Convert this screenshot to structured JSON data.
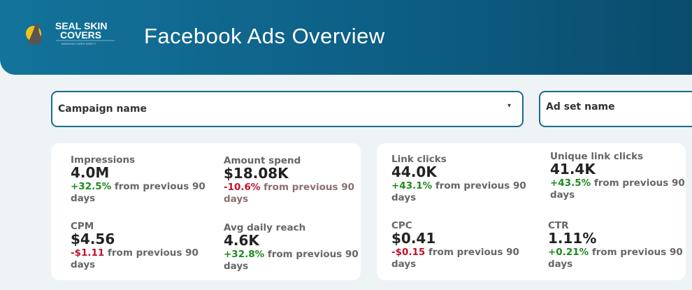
{
  "header": {
    "title": "Facebook Ads Overview",
    "logo": {
      "line1": "SEAL SKIN",
      "line2": "COVERS",
      "tagline": "MANUFACTURED DIRECT"
    }
  },
  "filters": {
    "campaign": "Campaign name",
    "adset": "Ad set name"
  },
  "colors": {
    "positive": "#1e8a1e",
    "negative": "#c0122a",
    "header": "#0d5d83"
  },
  "cards": [
    {
      "metrics": [
        {
          "label": "Impressions",
          "value": "4.0M",
          "change": "+32.5%",
          "dir": "pos",
          "suffix": "from previous 90 days"
        },
        {
          "label": "Amount spend",
          "value": "$18.08K",
          "change": "-10.6%",
          "dir": "neg",
          "suffix": "from previous 90 days"
        },
        {
          "label": "CPM",
          "value": "$4.56",
          "change": "-$1.11",
          "dir": "neg",
          "suffix": "from previous 90 days"
        },
        {
          "label": "Avg daily reach",
          "value": "4.6K",
          "change": "+32.8%",
          "dir": "pos",
          "suffix": "from previous 90 days"
        }
      ]
    },
    {
      "metrics": [
        {
          "label": "Link clicks",
          "value": "44.0K",
          "change": "+43.1%",
          "dir": "pos",
          "suffix": "from previous 90 days"
        },
        {
          "label": "Unique link clicks",
          "value": "41.4K",
          "change": "+43.5%",
          "dir": "pos",
          "suffix": "from previous 90 days"
        },
        {
          "label": "CPC",
          "value": "$0.41",
          "change": "-$0.15",
          "dir": "neg",
          "suffix": "from previous 90 days"
        },
        {
          "label": "CTR",
          "value": "1.11%",
          "change": "+0.21%",
          "dir": "pos",
          "suffix": "from previous 90 days"
        }
      ]
    }
  ]
}
